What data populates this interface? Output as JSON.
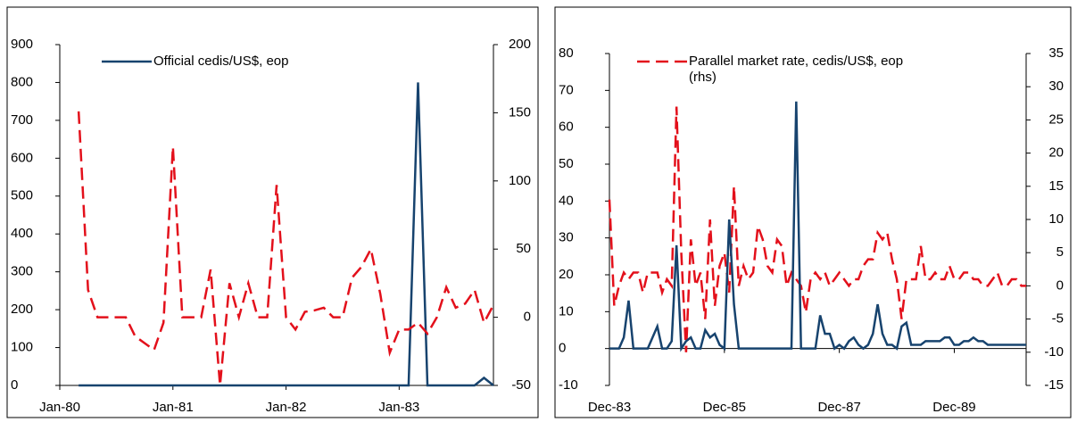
{
  "chart_data": [
    {
      "type": "line",
      "categories": [
        "Jan-80",
        null,
        null,
        null,
        null,
        null,
        null,
        null,
        null,
        null,
        null,
        null,
        "Jan-81",
        null,
        null,
        null,
        null,
        null,
        null,
        null,
        null,
        null,
        null,
        null,
        "Jan-82",
        null,
        null,
        null,
        null,
        null,
        null,
        null,
        null,
        null,
        null,
        null,
        "Jan-83",
        null,
        null,
        null,
        null,
        null,
        null,
        null,
        null,
        null,
        null
      ],
      "ylim": [
        0,
        900
      ],
      "yticks": [
        0,
        100,
        200,
        300,
        400,
        500,
        600,
        700,
        800,
        900
      ],
      "y2lim": [
        -50,
        200
      ],
      "y2ticks": [
        -50,
        0,
        50,
        100,
        150,
        200
      ],
      "series": [
        {
          "name": "Official cedis/US$, eop",
          "color": "#17436e",
          "line_style": "solid",
          "values": [
            null,
            null,
            0,
            0,
            0,
            0,
            0,
            0,
            0,
            0,
            0,
            0,
            0,
            0,
            0,
            0,
            0,
            0,
            0,
            0,
            0,
            0,
            0,
            0,
            0,
            0,
            0,
            0,
            0,
            0,
            0,
            0,
            0,
            0,
            0,
            0,
            0,
            0,
            800,
            0,
            0,
            0,
            0,
            0,
            0,
            20,
            0
          ]
        },
        {
          "color": "#e3101b",
          "line_style": "dashed",
          "axis": "y2",
          "values": [
            null,
            null,
            151,
            20,
            0,
            0,
            0,
            0,
            -14,
            -19,
            -24,
            -4,
            125,
            0,
            0,
            0,
            35,
            -50,
            25,
            0,
            25,
            0,
            0,
            97,
            0,
            -9,
            4,
            5,
            7,
            0,
            0,
            29,
            37,
            50,
            17,
            -26,
            -9,
            -9,
            -4,
            -12,
            0,
            22,
            7,
            10,
            20,
            -4,
            9
          ]
        }
      ]
    },
    {
      "type": "line",
      "categories": [
        "Dec-83",
        null,
        null,
        null,
        null,
        null,
        null,
        null,
        null,
        null,
        null,
        null,
        null,
        null,
        null,
        null,
        null,
        null,
        null,
        null,
        null,
        null,
        null,
        null,
        "Dec-85",
        null,
        null,
        null,
        null,
        null,
        null,
        null,
        null,
        null,
        null,
        null,
        null,
        null,
        null,
        null,
        null,
        null,
        null,
        null,
        null,
        null,
        null,
        null,
        "Dec-87",
        null,
        null,
        null,
        null,
        null,
        null,
        null,
        null,
        null,
        null,
        null,
        null,
        null,
        null,
        null,
        null,
        null,
        null,
        null,
        null,
        null,
        null,
        null,
        "Dec-89",
        null,
        null,
        null,
        null,
        null,
        null,
        null,
        null,
        null,
        null,
        null,
        null,
        null,
        null,
        null
      ],
      "ylim": [
        -10,
        80
      ],
      "yticks": [
        -10,
        0,
        10,
        20,
        30,
        40,
        50,
        60,
        70,
        80
      ],
      "y2lim": [
        -15,
        35
      ],
      "y2ticks": [
        -15,
        -10,
        -5,
        0,
        5,
        10,
        15,
        20,
        25,
        30,
        35
      ],
      "series": [
        {
          "color": "#e3101b",
          "line_style": "dashed",
          "axis": "y2",
          "name": "Parallel market rate, cedis/US$, eop (rhs)",
          "values": [
            13,
            -3,
            0,
            2,
            1,
            2,
            2,
            -1,
            2,
            2,
            2,
            -1,
            1,
            0,
            27,
            5,
            -10,
            7,
            0,
            2,
            -5,
            10,
            -3,
            3,
            5,
            -1,
            15,
            0,
            3,
            1,
            2,
            9,
            7,
            3,
            2,
            7,
            6,
            0,
            2,
            1,
            0,
            -4,
            1,
            2,
            1,
            2,
            0,
            1,
            2,
            1,
            0,
            1,
            1,
            3,
            4,
            4,
            8,
            7,
            8,
            4,
            1,
            -5,
            1,
            1,
            1,
            6,
            1,
            1,
            2,
            1,
            1,
            3,
            1,
            1,
            2,
            2,
            1,
            1,
            0,
            0,
            1,
            2,
            0,
            0,
            1,
            1,
            0,
            0
          ]
        },
        {
          "color": "#17436e",
          "line_style": "solid",
          "values": [
            0,
            0,
            0,
            3,
            13,
            0,
            0,
            0,
            0,
            3,
            6,
            0,
            0,
            2,
            28,
            0,
            2,
            3,
            0,
            0,
            5,
            3,
            4,
            1,
            0,
            35,
            12,
            0,
            0,
            0,
            0,
            0,
            0,
            0,
            0,
            0,
            0,
            0,
            0,
            67,
            0,
            0,
            0,
            0,
            9,
            4,
            4,
            0,
            1,
            0,
            2,
            3,
            1,
            0,
            1,
            4,
            12,
            4,
            1,
            1,
            0,
            6,
            7,
            1,
            1,
            1,
            2,
            2,
            2,
            2,
            3,
            3,
            1,
            1,
            2,
            2,
            3,
            2,
            2,
            1,
            1,
            1,
            1,
            1,
            1,
            1,
            1,
            1
          ]
        }
      ]
    }
  ]
}
